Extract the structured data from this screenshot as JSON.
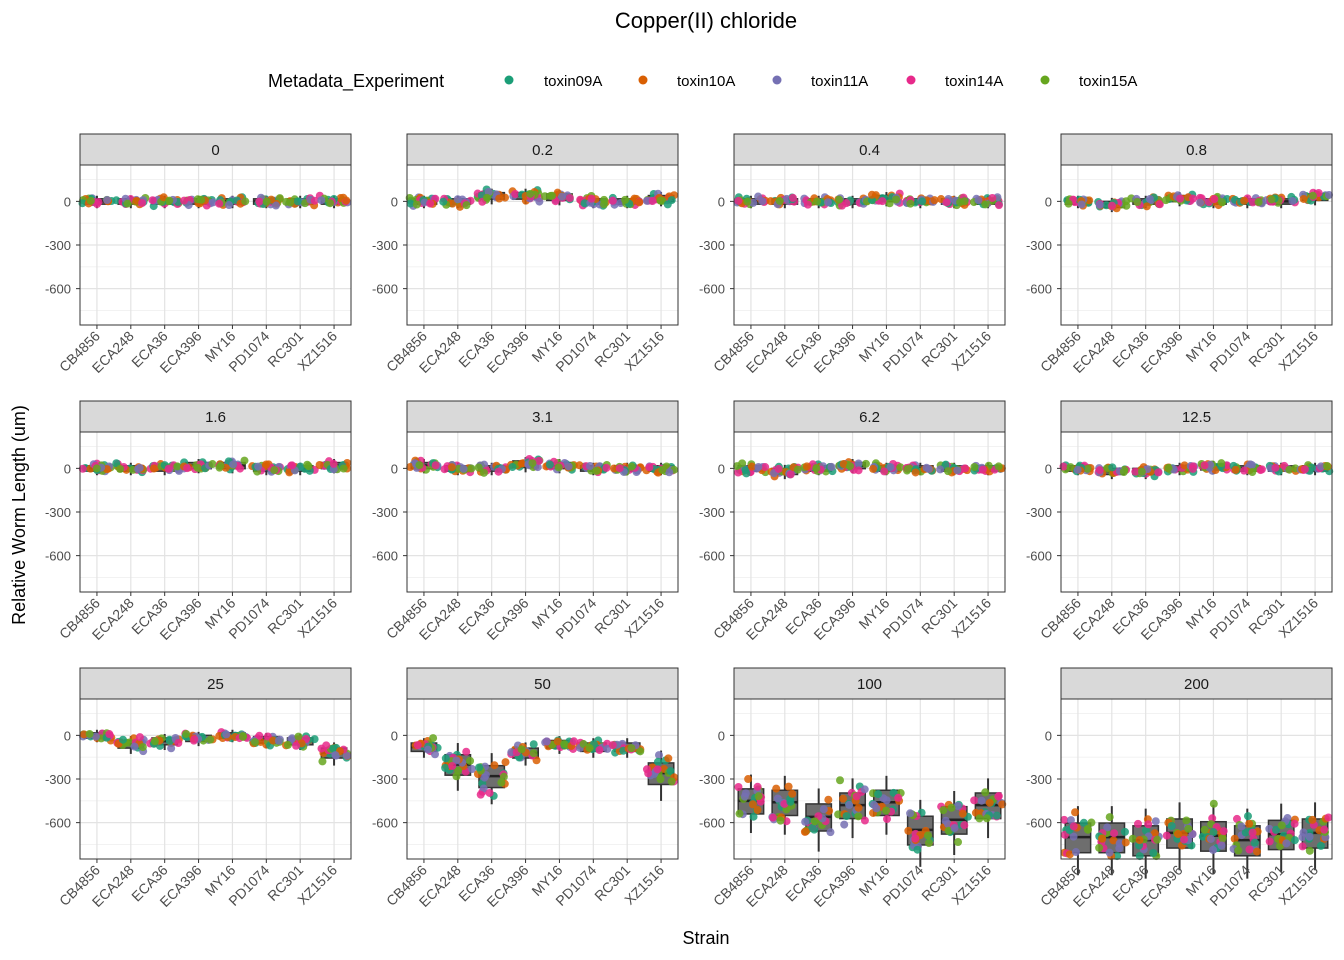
{
  "colors": {
    "toxin09A": "#1B9E77",
    "toxin10A": "#D95F02",
    "toxin11A": "#7570B3",
    "toxin14A": "#E7298A",
    "toxin15A": "#66A61E",
    "box_fill": "#6e6e6e",
    "strip_fill": "#d9d9d9"
  },
  "chart_data": {
    "type": "box-strip faceted",
    "title": "Copper(II) chloride",
    "xlabel": "Strain",
    "ylabel": "Relative Worm Length (um)",
    "legend": {
      "title": "Metadata_Experiment",
      "position": "top",
      "entries": [
        "toxin09A",
        "toxin10A",
        "toxin11A",
        "toxin14A",
        "toxin15A"
      ]
    },
    "strains": [
      "CB4856",
      "ECA248",
      "ECA36",
      "ECA396",
      "MY16",
      "PD1074",
      "RC301",
      "XZ1516"
    ],
    "y_ticks": [
      0,
      -300,
      -600
    ],
    "y_tick_labels": [
      "0",
      "-300",
      "-600"
    ],
    "ylim": [
      -850,
      250
    ],
    "grid": true,
    "facets": [
      {
        "label": "0",
        "medians": [
          0,
          0,
          0,
          0,
          0,
          0,
          0,
          0
        ]
      },
      {
        "label": "0.2",
        "medians": [
          0,
          0,
          40,
          40,
          30,
          0,
          0,
          20
        ]
      },
      {
        "label": "0.4",
        "medians": [
          0,
          0,
          0,
          0,
          20,
          0,
          0,
          0
        ]
      },
      {
        "label": "0.8",
        "medians": [
          0,
          -20,
          0,
          20,
          0,
          0,
          0,
          30
        ]
      },
      {
        "label": "1.6",
        "medians": [
          0,
          0,
          0,
          20,
          20,
          0,
          0,
          20
        ]
      },
      {
        "label": "3.1",
        "medians": [
          20,
          0,
          0,
          30,
          20,
          0,
          0,
          0
        ]
      },
      {
        "label": "6.2",
        "medians": [
          0,
          -20,
          0,
          20,
          0,
          0,
          0,
          0
        ]
      },
      {
        "label": "12.5",
        "medians": [
          0,
          -20,
          -20,
          0,
          10,
          0,
          0,
          0
        ]
      },
      {
        "label": "25",
        "medians": [
          0,
          -60,
          -40,
          -20,
          0,
          -30,
          -40,
          -120
        ]
      },
      {
        "label": "50",
        "medians": [
          -80,
          -200,
          -280,
          -120,
          -60,
          -80,
          -80,
          -260
        ]
      },
      {
        "label": "100",
        "medians": [
          -450,
          -460,
          -560,
          -480,
          -460,
          -650,
          -580,
          -480
        ]
      },
      {
        "label": "200",
        "medians": [
          -700,
          -700,
          -720,
          -670,
          -690,
          -720,
          -680,
          -670
        ]
      }
    ]
  }
}
